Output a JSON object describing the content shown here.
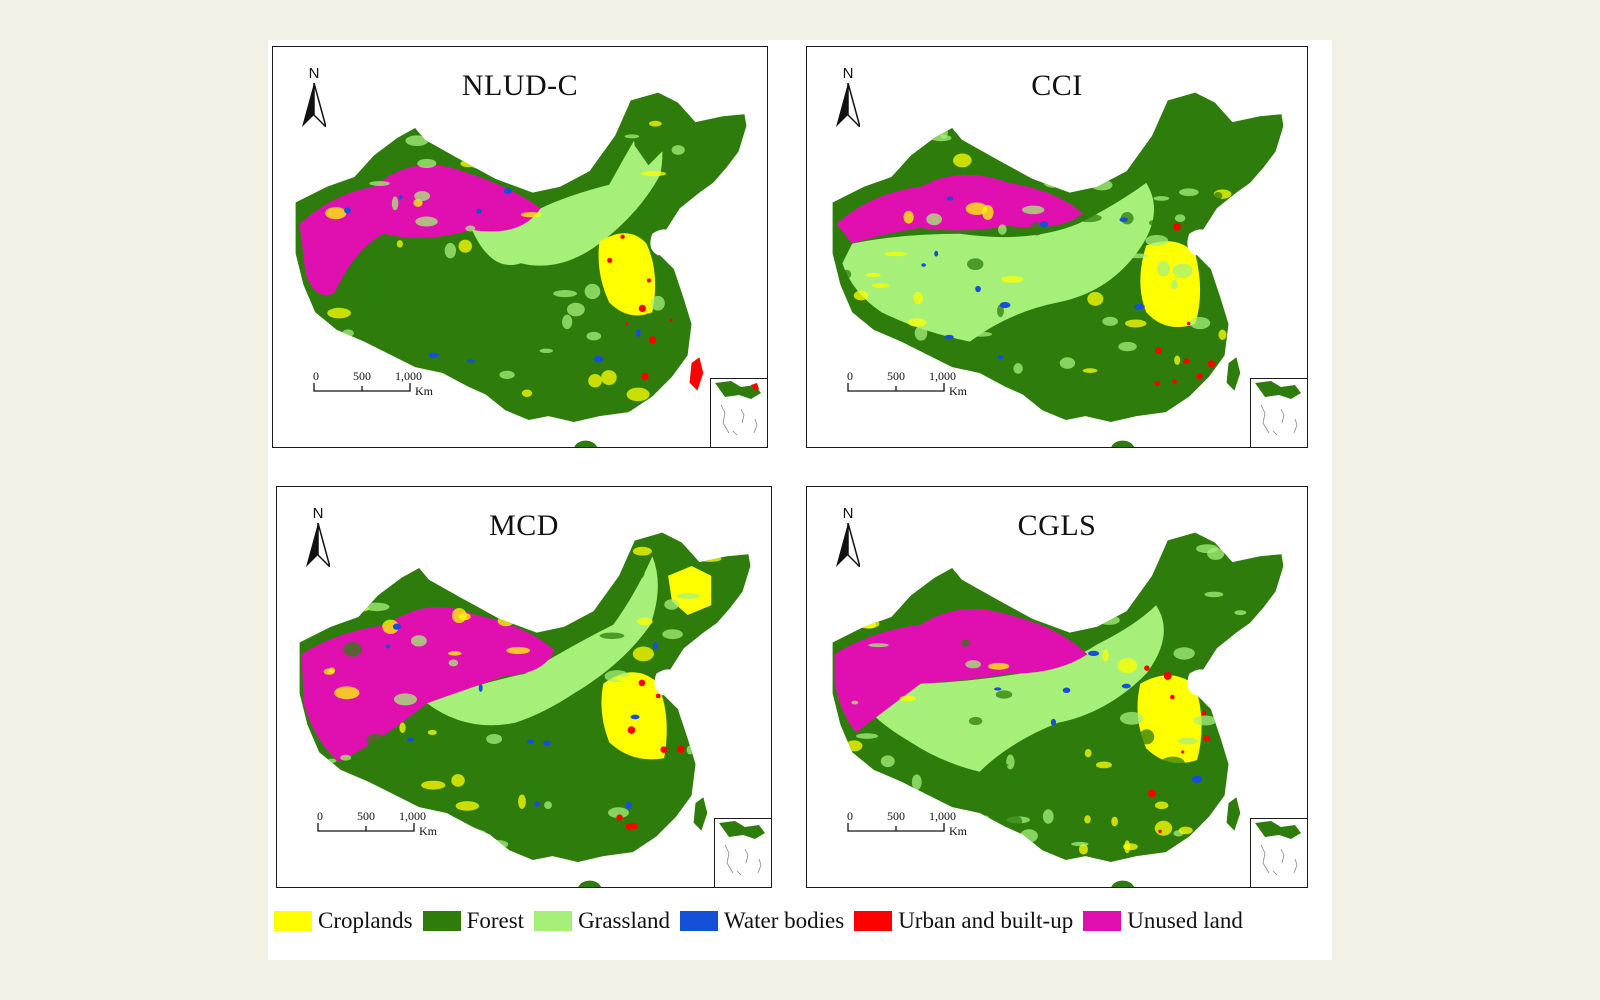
{
  "panels": [
    {
      "title": "NLUD-C",
      "variant": "nludc"
    },
    {
      "title": "CCI",
      "variant": "cci"
    },
    {
      "title": "MCD",
      "variant": "mcd"
    },
    {
      "title": "CGLS",
      "variant": "cgls"
    }
  ],
  "north_label": "N",
  "scale": {
    "ticks": [
      "0",
      "500",
      "1,000"
    ],
    "unit": "Km"
  },
  "legend": [
    {
      "label": "Croplands",
      "color": "#ffff00"
    },
    {
      "label": "Forest",
      "color": "#2e7d0c"
    },
    {
      "label": "Grassland",
      "color": "#a6f07a"
    },
    {
      "label": "Water bodies",
      "color": "#1550d8"
    },
    {
      "label": "Urban and built-up",
      "color": "#ff0000"
    },
    {
      "label": "Unused land",
      "color": "#e010b0"
    }
  ]
}
